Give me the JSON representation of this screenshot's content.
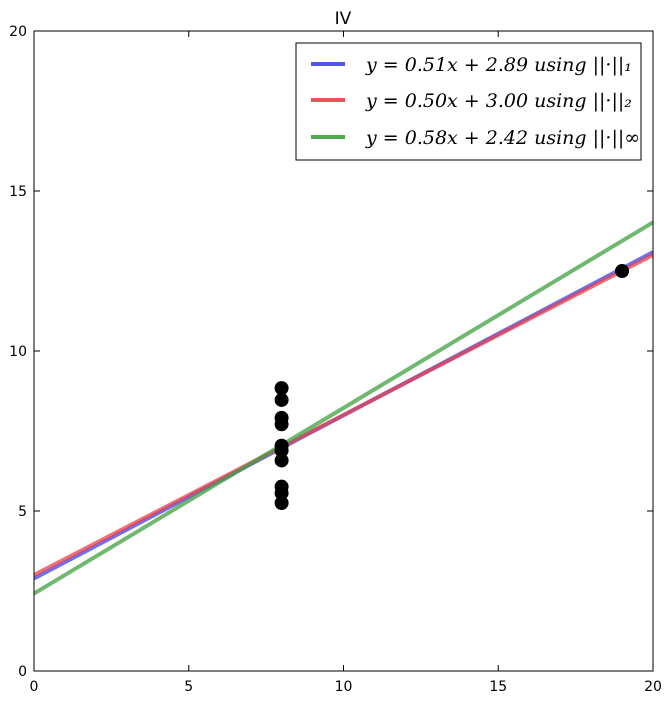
{
  "chart_data": {
    "type": "scatter",
    "title": "IV",
    "xlabel": "",
    "ylabel": "",
    "xlim": [
      0,
      20
    ],
    "ylim": [
      0,
      20
    ],
    "x_ticks": [
      0,
      5,
      10,
      15,
      20
    ],
    "y_ticks": [
      0,
      5,
      10,
      15,
      20
    ],
    "grid": false,
    "legend_placement": "top-right",
    "points": {
      "color": "#000000",
      "x": [
        8,
        8,
        8,
        8,
        8,
        8,
        8,
        8,
        8,
        8,
        19
      ],
      "y": [
        8.84,
        8.47,
        7.91,
        7.71,
        7.04,
        6.89,
        6.58,
        5.76,
        5.56,
        5.25,
        12.5
      ]
    },
    "series": [
      {
        "name": "y = 0.51x + 2.89 using ||·||₁",
        "slope": 0.51,
        "intercept": 2.89,
        "color": "#4040e8"
      },
      {
        "name": "y = 0.50x + 3.00 using ||·||₂",
        "slope": 0.5,
        "intercept": 3.0,
        "color": "#e84048"
      },
      {
        "name": "y = 0.58x + 2.42 using ||·||∞",
        "slope": 0.58,
        "intercept": 2.42,
        "color": "#40a040"
      }
    ]
  }
}
